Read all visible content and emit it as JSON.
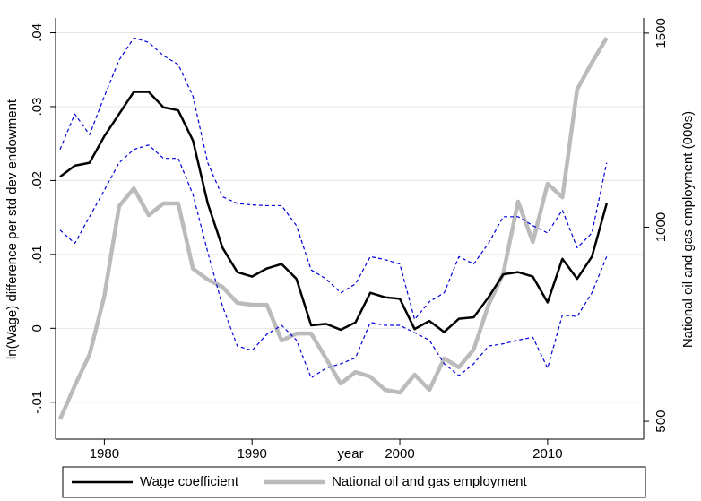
{
  "chart_data": {
    "type": "line",
    "x_label": "year",
    "y_label": "ln(Wage) difference per std dev endowment",
    "y2_label": "National oil and gas employment (000s)",
    "x": [
      1977,
      1978,
      1979,
      1980,
      1981,
      1982,
      1983,
      1984,
      1985,
      1986,
      1987,
      1988,
      1989,
      1990,
      1991,
      1992,
      1993,
      1994,
      1995,
      1996,
      1997,
      1998,
      1999,
      2000,
      2001,
      2002,
      2003,
      2004,
      2005,
      2006,
      2007,
      2008,
      2009,
      2010,
      2011,
      2012,
      2013,
      2014
    ],
    "xlim": [
      1976.7,
      2016.5
    ],
    "xticks": [
      1980,
      1990,
      2000,
      2010
    ],
    "ylim": [
      -0.015,
      0.042
    ],
    "yticks": [
      {
        "value": -0.01,
        "label": "-.01"
      },
      0,
      {
        "value": 0.01,
        "label": ".01"
      },
      {
        "value": 0.02,
        "label": ".02"
      },
      {
        "value": 0.03,
        "label": ".03"
      },
      {
        "value": 0.04,
        "label": ".04"
      }
    ],
    "y2lim": [
      454,
      1539
    ],
    "y2ticks": [
      500,
      1000,
      1500
    ],
    "grid": true,
    "legend": "bottom",
    "series": [
      {
        "name": "Wage coefficient",
        "color": "#000000",
        "width": 2.5,
        "dashed": false,
        "values": [
          0.0205,
          0.022,
          0.0224,
          0.026,
          0.029,
          0.032,
          0.032,
          0.0299,
          0.0295,
          0.0254,
          0.0169,
          0.0109,
          0.0076,
          0.007,
          0.0081,
          0.0087,
          0.0067,
          0.0004,
          0.0006,
          -0.0002,
          0.0008,
          0.0048,
          0.0042,
          0.004,
          -0.0001,
          0.001,
          -0.0005,
          0.0013,
          0.0015,
          0.0042,
          0.0073,
          0.0076,
          0.007,
          0.0035,
          0.0094,
          0.0067,
          0.0097,
          0.0169
        ]
      },
      {
        "color": "#0000dd",
        "width": 1.2,
        "dashed": true,
        "values": [
          0.0242,
          0.029,
          0.0262,
          0.0314,
          0.0363,
          0.0393,
          0.0387,
          0.0369,
          0.0357,
          0.0314,
          0.0224,
          0.0178,
          0.0169,
          0.0167,
          0.0166,
          0.0166,
          0.0139,
          0.0079,
          0.0067,
          0.0048,
          0.006,
          0.0097,
          0.0093,
          0.0087,
          0.0012,
          0.0036,
          0.0048,
          0.0097,
          0.0087,
          0.0115,
          0.0151,
          0.0151,
          0.0139,
          0.0129,
          0.016,
          0.0109,
          0.0129,
          0.0224
        ]
      },
      {
        "color": "#0000dd",
        "width": 1.2,
        "dashed": true,
        "values": [
          0.0133,
          0.0115,
          0.0151,
          0.0187,
          0.0224,
          0.0242,
          0.0248,
          0.023,
          0.023,
          0.0181,
          0.0103,
          0.003,
          -0.0024,
          -0.003,
          -0.0008,
          0.0004,
          -0.0016,
          -0.0067,
          -0.0054,
          -0.0048,
          -0.004,
          0.0008,
          0.0004,
          0.0004,
          -0.0006,
          -0.0016,
          -0.0048,
          -0.0064,
          -0.0048,
          -0.0024,
          -0.0021,
          -0.0016,
          -0.0012,
          -0.0054,
          0.0018,
          0.0016,
          0.0048,
          0.0097
        ]
      },
      {
        "name": "National oil and gas employment",
        "color": "#bbbbbb",
        "width": 4.5,
        "dashed": false,
        "axis": "y2",
        "values": [
          505,
          592,
          672,
          823,
          1054,
          1100,
          1031,
          1061,
          1061,
          893,
          865,
          846,
          805,
          800,
          800,
          708,
          726,
          726,
          662,
          597,
          627,
          615,
          581,
          574,
          620,
          581,
          662,
          639,
          685,
          800,
          881,
          1066,
          962,
          1112,
          1077,
          1355,
          1424,
          1488
        ]
      }
    ]
  }
}
